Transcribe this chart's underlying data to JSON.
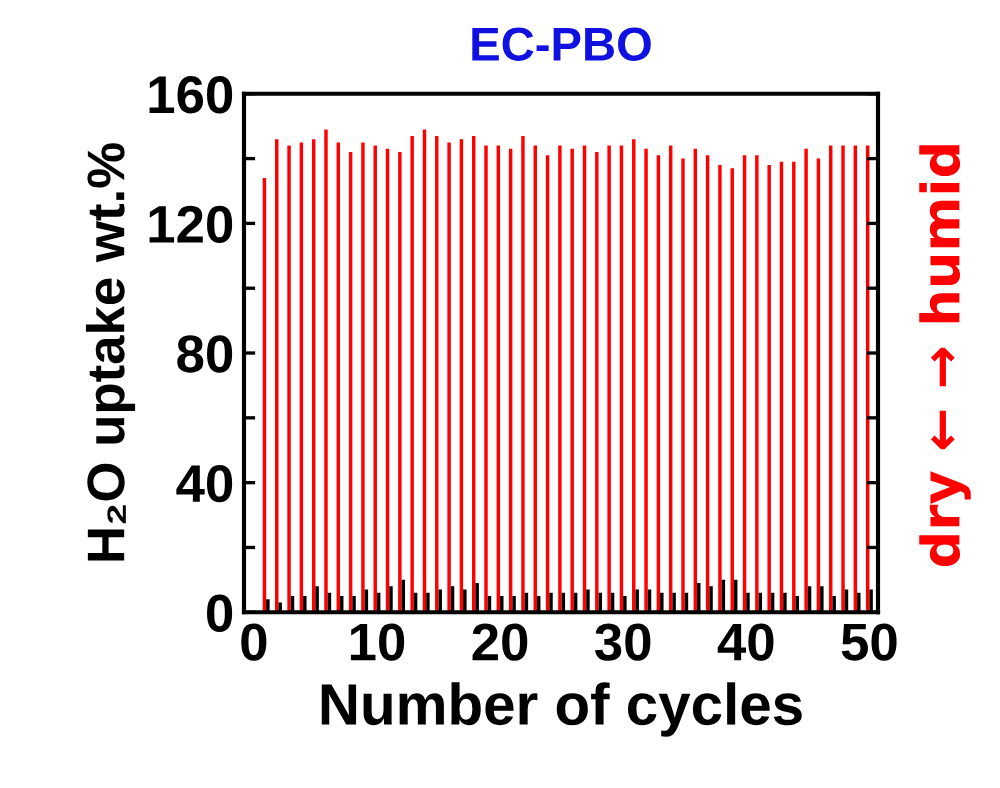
{
  "chart_data": {
    "type": "bar",
    "title": "EC-PBO",
    "xlabel": "Number of cycles",
    "ylabel": "H₂O uptake wt.%",
    "annotations": [
      "dry ← → humid"
    ],
    "x": [
      1,
      2,
      3,
      4,
      5,
      6,
      7,
      8,
      9,
      10,
      11,
      12,
      13,
      14,
      15,
      16,
      17,
      18,
      19,
      20,
      21,
      22,
      23,
      24,
      25,
      26,
      27,
      28,
      29,
      30,
      31,
      32,
      33,
      34,
      35,
      36,
      37,
      38,
      39,
      40,
      41,
      42,
      43,
      44,
      45,
      46,
      47,
      48,
      49,
      50
    ],
    "series": [
      {
        "color": "#ff0000",
        "values": [
          134,
          146,
          144,
          145,
          146,
          149,
          145,
          142,
          145,
          144,
          143,
          142,
          147,
          149,
          147,
          145,
          146,
          147,
          144,
          144,
          143,
          147,
          144,
          141,
          144,
          143,
          144,
          142,
          144,
          144,
          146,
          143,
          141,
          144,
          140,
          143,
          141,
          138,
          137,
          141,
          141,
          138,
          139,
          139,
          143,
          140,
          144,
          144,
          144,
          144
        ]
      },
      {
        "color": "#000000",
        "values": [
          4,
          3,
          5,
          5,
          8,
          6,
          5,
          5,
          7,
          6,
          8,
          10,
          6,
          6,
          7,
          8,
          7,
          9,
          5,
          5,
          5,
          6,
          5,
          6,
          6,
          6,
          7,
          6,
          6,
          5,
          7,
          7,
          6,
          6,
          6,
          9,
          8,
          10,
          10,
          6,
          6,
          6,
          6,
          5,
          8,
          8,
          5,
          7,
          6,
          7
        ]
      }
    ],
    "xlim": [
      -0.8,
      50.7
    ],
    "xticks": [
      0,
      10,
      20,
      30,
      40,
      50
    ],
    "ylim": [
      0,
      160
    ],
    "yticks": [
      0,
      {
        "value": 20,
        "label": null
      },
      40,
      {
        "value": 60,
        "label": null
      },
      80,
      {
        "value": 100,
        "label": null
      },
      120,
      {
        "value": 140,
        "label": null
      },
      160
    ],
    "grid": false,
    "legend": false
  }
}
